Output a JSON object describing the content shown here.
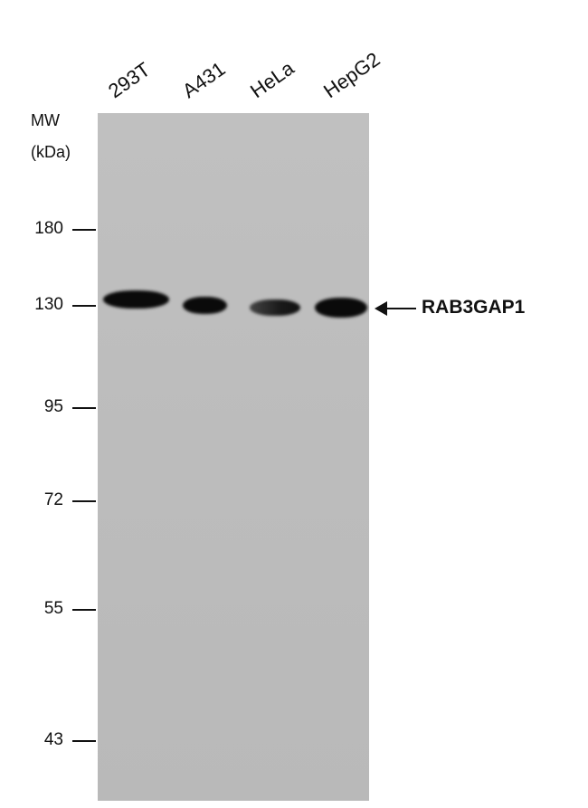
{
  "lanes": [
    "293T",
    "A431",
    "HeLa",
    "HepG2"
  ],
  "mw_header": [
    "MW",
    "(kDa)"
  ],
  "markers": [
    "180",
    "130",
    "95",
    "72",
    "55",
    "43"
  ],
  "target": "RAB3GAP1",
  "band_intensity": {
    "293T": 0.95,
    "A431": 0.9,
    "HeLa": 0.7,
    "HepG2": 1.0
  },
  "colors": {
    "membrane": "#bdbdbd",
    "band": "#0a0a0a"
  }
}
